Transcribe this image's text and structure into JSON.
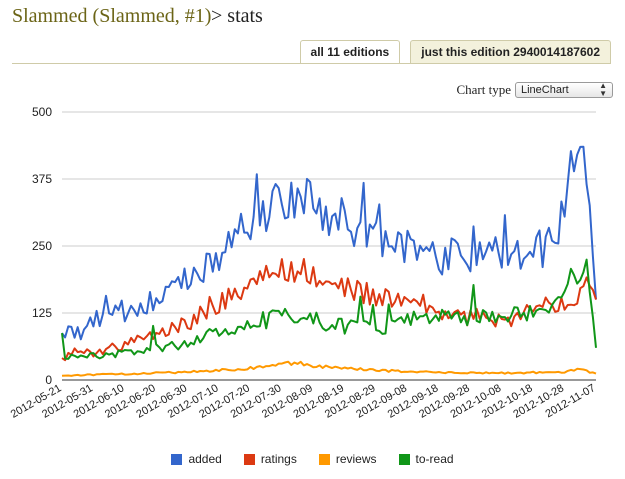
{
  "page": {
    "title_link": "Slammed (Slammed, #1)",
    "title_suffix": " > stats"
  },
  "tabs": [
    {
      "label": "all 11 editions",
      "active": true
    },
    {
      "label": "just this edition 2940014187602",
      "active": false
    }
  ],
  "chart_type": {
    "label": "Chart type",
    "selected": "LineChart"
  },
  "chart_data": {
    "type": "line",
    "title": "",
    "xlabel": "",
    "ylabel": "",
    "ylim": [
      0,
      500
    ],
    "yticks": [
      "0",
      "125",
      "250",
      "375",
      "500"
    ],
    "xtick_labels": [
      "2012-05-21",
      "2012-05-31",
      "2012-06-10",
      "2012-06-20",
      "2012-06-30",
      "2012-07-10",
      "2012-07-20",
      "2012-07-30",
      "2012-08-09",
      "2012-08-19",
      "2012-08-29",
      "2012-09-08",
      "2012-09-18",
      "2012-09-28",
      "2012-10-08",
      "2012-10-18",
      "2012-10-28",
      "2012-11-07"
    ],
    "days": 171,
    "series": [
      {
        "name": "added",
        "color": "#3366cc",
        "anchors": [
          [
            0,
            82
          ],
          [
            3,
            95
          ],
          [
            6,
            78
          ],
          [
            9,
            110
          ],
          [
            15,
            120
          ],
          [
            20,
            125
          ],
          [
            25,
            140
          ],
          [
            30,
            150
          ],
          [
            35,
            165
          ],
          [
            40,
            175
          ],
          [
            45,
            200
          ],
          [
            50,
            235
          ],
          [
            55,
            260
          ],
          [
            60,
            300
          ],
          [
            65,
            310
          ],
          [
            70,
            330
          ],
          [
            75,
            345
          ],
          [
            80,
            320
          ],
          [
            85,
            290
          ],
          [
            90,
            300
          ],
          [
            95,
            280
          ],
          [
            100,
            265
          ],
          [
            105,
            250
          ],
          [
            110,
            245
          ],
          [
            115,
            260
          ],
          [
            120,
            225
          ],
          [
            125,
            240
          ],
          [
            130,
            220
          ],
          [
            135,
            250
          ],
          [
            140,
            240
          ],
          [
            145,
            230
          ],
          [
            150,
            250
          ],
          [
            155,
            240
          ],
          [
            158,
            265
          ],
          [
            160,
            340
          ],
          [
            162,
            390
          ],
          [
            164,
            375
          ],
          [
            166,
            420
          ],
          [
            168,
            350
          ],
          [
            170,
            150
          ]
        ]
      },
      {
        "name": "ratings",
        "color": "#dc3912",
        "anchors": [
          [
            0,
            40
          ],
          [
            5,
            55
          ],
          [
            10,
            50
          ],
          [
            15,
            60
          ],
          [
            20,
            65
          ],
          [
            25,
            80
          ],
          [
            30,
            85
          ],
          [
            35,
            95
          ],
          [
            40,
            105
          ],
          [
            45,
            130
          ],
          [
            50,
            145
          ],
          [
            55,
            165
          ],
          [
            60,
            180
          ],
          [
            65,
            190
          ],
          [
            70,
            205
          ],
          [
            75,
            210
          ],
          [
            80,
            195
          ],
          [
            85,
            170
          ],
          [
            90,
            175
          ],
          [
            95,
            165
          ],
          [
            100,
            155
          ],
          [
            105,
            150
          ],
          [
            110,
            145
          ],
          [
            115,
            140
          ],
          [
            120,
            125
          ],
          [
            125,
            120
          ],
          [
            130,
            115
          ],
          [
            135,
            125
          ],
          [
            140,
            110
          ],
          [
            145,
            120
          ],
          [
            150,
            130
          ],
          [
            155,
            140
          ],
          [
            160,
            150
          ],
          [
            164,
            165
          ],
          [
            167,
            190
          ],
          [
            170,
            150
          ]
        ]
      },
      {
        "name": "reviews",
        "color": "#ff9900",
        "anchors": [
          [
            0,
            8
          ],
          [
            10,
            10
          ],
          [
            20,
            11
          ],
          [
            30,
            13
          ],
          [
            40,
            15
          ],
          [
            50,
            18
          ],
          [
            60,
            22
          ],
          [
            70,
            30
          ],
          [
            75,
            32
          ],
          [
            80,
            26
          ],
          [
            90,
            22
          ],
          [
            100,
            18
          ],
          [
            110,
            16
          ],
          [
            120,
            14
          ],
          [
            130,
            13
          ],
          [
            140,
            13
          ],
          [
            150,
            14
          ],
          [
            160,
            15
          ],
          [
            165,
            20
          ],
          [
            170,
            12
          ]
        ]
      },
      {
        "name": "to-read",
        "color": "#109618",
        "anchors": [
          [
            0,
            40
          ],
          [
            5,
            48
          ],
          [
            10,
            45
          ],
          [
            20,
            50
          ],
          [
            30,
            60
          ],
          [
            40,
            68
          ],
          [
            45,
            80
          ],
          [
            50,
            95
          ],
          [
            55,
            100
          ],
          [
            60,
            108
          ],
          [
            65,
            112
          ],
          [
            70,
            118
          ],
          [
            75,
            120
          ],
          [
            80,
            112
          ],
          [
            85,
            105
          ],
          [
            90,
            100
          ],
          [
            95,
            100
          ],
          [
            100,
            95
          ],
          [
            105,
            100
          ],
          [
            110,
            110
          ],
          [
            115,
            120
          ],
          [
            120,
            115
          ],
          [
            125,
            120
          ],
          [
            130,
            118
          ],
          [
            135,
            125
          ],
          [
            140,
            120
          ],
          [
            145,
            125
          ],
          [
            150,
            130
          ],
          [
            155,
            135
          ],
          [
            160,
            170
          ],
          [
            164,
            205
          ],
          [
            167,
            190
          ],
          [
            170,
            60
          ]
        ]
      }
    ]
  },
  "legend": [
    {
      "label": "added",
      "color": "#3366cc"
    },
    {
      "label": "ratings",
      "color": "#dc3912"
    },
    {
      "label": "reviews",
      "color": "#ff9900"
    },
    {
      "label": "to-read",
      "color": "#109618"
    }
  ]
}
